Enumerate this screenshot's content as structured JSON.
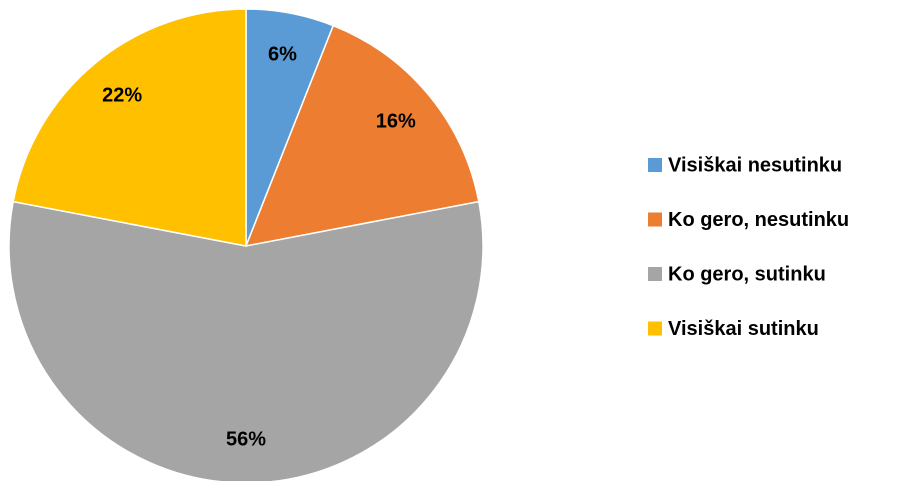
{
  "chart_data": {
    "type": "pie",
    "categories": [
      "Visiškai nesutinku",
      "Ko gero, nesutinku",
      "Ko gero, sutinku",
      "Visiškai sutinku"
    ],
    "values": [
      6,
      16,
      56,
      22
    ],
    "value_labels": [
      "6%",
      "16%",
      "56%",
      "22%"
    ],
    "colors": [
      "#5b9bd5",
      "#ed7d31",
      "#a5a5a5",
      "#ffc000"
    ],
    "legend": "right"
  }
}
